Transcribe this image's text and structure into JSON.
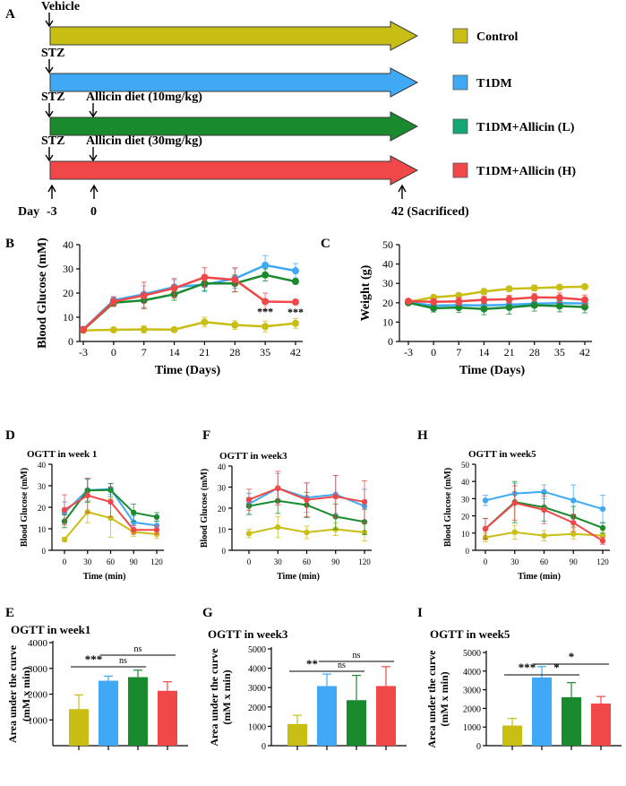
{
  "colors": {
    "control": "#c8be14",
    "t1dm": "#3fa9f5",
    "allicin_l": "#1a8a2e",
    "allicin_h": "#f04848",
    "legend_l": "#13a871"
  },
  "panel_letters": [
    "A",
    "B",
    "C",
    "D",
    "F",
    "H",
    "E",
    "G",
    "I"
  ],
  "schematic": {
    "arrows": [
      {
        "start_label": "Vehicle",
        "diet_label": ""
      },
      {
        "start_label": "STZ",
        "diet_label": ""
      },
      {
        "start_label": "STZ",
        "diet_label": "Allicin diet (10mg/kg)"
      },
      {
        "start_label": "STZ",
        "diet_label": "Allicin diet (30mg/kg)"
      }
    ],
    "legend": [
      "Control",
      "T1DM",
      "T1DM+Allicin (L)",
      "T1DM+Allicin (H)"
    ],
    "timeline": {
      "day_label": "Day",
      "start": "-3",
      "diet": "0",
      "end": "42 (Sacrificed)"
    }
  },
  "chart_data": [
    {
      "id": "B",
      "type": "line",
      "xlabel": "Time (Days)",
      "ylabel": "Blood Glucose (mM)",
      "x": [
        -3,
        0,
        7,
        14,
        21,
        28,
        35,
        42
      ],
      "xticks": [
        "-3",
        "0",
        "7",
        "14",
        "21",
        "28",
        "35",
        "42"
      ],
      "ylim": [
        0,
        40
      ],
      "yticks": [
        0,
        10,
        20,
        30,
        40
      ],
      "series": [
        {
          "name": "Control",
          "values": [
            4.6,
            4.8,
            5.0,
            4.9,
            8.0,
            6.8,
            6.2,
            7.5
          ],
          "err": [
            0.5,
            0.8,
            1.5,
            1.0,
            2.0,
            1.8,
            2.2,
            2.0
          ]
        },
        {
          "name": "T1DM",
          "values": [
            5.0,
            17.0,
            19.5,
            22.5,
            23.5,
            26.0,
            31.5,
            29.2
          ],
          "err": [
            0.5,
            1.5,
            3.5,
            3.0,
            3.0,
            4.0,
            4.0,
            3.0
          ]
        },
        {
          "name": "T1DM+Allicin (L)",
          "values": [
            4.8,
            16.0,
            17.0,
            19.5,
            24.0,
            24.0,
            27.5,
            24.8
          ],
          "err": [
            0.5,
            1.5,
            3.0,
            2.5,
            3.0,
            3.5,
            2.5,
            1.0
          ]
        },
        {
          "name": "T1DM+Allicin (H)",
          "values": [
            4.9,
            16.5,
            19.0,
            22.0,
            26.5,
            25.5,
            16.5,
            16.3
          ],
          "err": [
            0.5,
            2.0,
            5.5,
            4.0,
            4.0,
            5.0,
            3.5,
            1.0
          ]
        }
      ],
      "annotations": [
        "***",
        "***"
      ]
    },
    {
      "id": "C",
      "type": "line",
      "xlabel": "Time (Days)",
      "ylabel": "Weight (g)",
      "x": [
        -3,
        0,
        7,
        14,
        21,
        28,
        35,
        42
      ],
      "xticks": [
        "-3",
        "0",
        "7",
        "14",
        "21",
        "28",
        "35",
        "42"
      ],
      "ylim": [
        0,
        50
      ],
      "yticks": [
        0,
        10,
        20,
        30,
        40,
        50
      ],
      "series": [
        {
          "name": "Control",
          "values": [
            20.5,
            22.8,
            23.8,
            25.8,
            27.2,
            27.6,
            28.0,
            28.3
          ],
          "err": [
            0.8,
            1.0,
            1.2,
            1.5,
            1.2,
            1.5,
            1.2,
            1.0
          ]
        },
        {
          "name": "T1DM",
          "values": [
            20.2,
            18.5,
            18.8,
            18.6,
            19.0,
            19.5,
            19.8,
            19.6
          ],
          "err": [
            1.0,
            1.5,
            2.0,
            2.0,
            2.0,
            2.0,
            2.0,
            2.0
          ]
        },
        {
          "name": "T1DM+Allicin (L)",
          "values": [
            20.0,
            17.2,
            17.5,
            16.8,
            17.6,
            18.7,
            18.3,
            17.8
          ],
          "err": [
            1.0,
            2.0,
            2.5,
            3.0,
            3.5,
            3.0,
            3.0,
            3.0
          ]
        },
        {
          "name": "T1DM+Allicin (H)",
          "values": [
            20.8,
            20.5,
            20.7,
            21.5,
            21.8,
            22.8,
            22.6,
            21.5
          ],
          "err": [
            1.0,
            1.5,
            2.0,
            2.0,
            2.0,
            2.0,
            2.5,
            2.5
          ]
        }
      ]
    },
    {
      "id": "D",
      "type": "line",
      "title": "OGTT in week 1",
      "xlabel": "Time (min)",
      "ylabel": "Blood Glucose (mM)",
      "x": [
        0,
        30,
        60,
        90,
        120
      ],
      "xticks": [
        "0",
        "30",
        "60",
        "90",
        "120"
      ],
      "ylim": [
        0,
        40
      ],
      "yticks": [
        0,
        10,
        20,
        30,
        40
      ],
      "series": [
        {
          "name": "Control",
          "values": [
            5.0,
            17.8,
            15.0,
            8.5,
            7.5
          ],
          "err": [
            1.0,
            5.0,
            9.0,
            2.0,
            2.0
          ]
        },
        {
          "name": "T1DM",
          "values": [
            17.5,
            28.0,
            28.5,
            13.0,
            11.5
          ],
          "err": [
            5.0,
            5.0,
            2.5,
            3.0,
            2.0
          ]
        },
        {
          "name": "T1DM+Allicin (L)",
          "values": [
            13.5,
            27.8,
            28.0,
            17.5,
            15.5
          ],
          "err": [
            3.0,
            5.5,
            3.0,
            4.0,
            2.0
          ]
        },
        {
          "name": "T1DM+Allicin (H)",
          "values": [
            18.8,
            25.5,
            22.5,
            9.5,
            9.5
          ],
          "err": [
            7.0,
            8.0,
            7.0,
            2.0,
            2.0
          ]
        }
      ]
    },
    {
      "id": "F",
      "type": "line",
      "title": "OGTT in week3",
      "xlabel": "Time (min)",
      "ylabel": "Blood Glucose (mM)",
      "x": [
        0,
        30,
        60,
        90,
        120
      ],
      "xticks": [
        "0",
        "30",
        "60",
        "90",
        "120"
      ],
      "ylim": [
        0,
        40
      ],
      "yticks": [
        0,
        10,
        20,
        30,
        40
      ],
      "series": [
        {
          "name": "Control",
          "values": [
            8.0,
            11.0,
            8.5,
            10.0,
            8.5
          ],
          "err": [
            2.0,
            5.0,
            3.0,
            3.0,
            4.0
          ]
        },
        {
          "name": "T1DM",
          "values": [
            22.0,
            29.5,
            25.0,
            26.5,
            21.0
          ],
          "err": [
            5.0,
            7.0,
            7.0,
            9.0,
            8.0
          ]
        },
        {
          "name": "T1DM+Allicin (L)",
          "values": [
            21.0,
            23.5,
            21.5,
            16.0,
            13.5
          ],
          "err": [
            4.0,
            6.0,
            6.0,
            6.0,
            6.0
          ]
        },
        {
          "name": "T1DM+Allicin (H)",
          "values": [
            24.0,
            29.5,
            24.0,
            25.5,
            23.0
          ],
          "err": [
            5.0,
            8.0,
            8.0,
            10.0,
            10.0
          ]
        }
      ]
    },
    {
      "id": "H",
      "type": "line",
      "title": "OGTT in week5",
      "xlabel": "Time (min)",
      "ylabel": "Blood Glucose (mM)",
      "x": [
        0,
        30,
        60,
        90,
        120
      ],
      "xticks": [
        "0",
        "30",
        "60",
        "90",
        "120"
      ],
      "ylim": [
        0,
        50
      ],
      "yticks": [
        0,
        10,
        20,
        30,
        40,
        50
      ],
      "series": [
        {
          "name": "Control",
          "values": [
            7.5,
            10.5,
            8.5,
            9.5,
            8.5
          ],
          "err": [
            2.5,
            4.0,
            3.0,
            3.0,
            3.0
          ]
        },
        {
          "name": "T1DM",
          "values": [
            29.0,
            33.0,
            34.0,
            29.0,
            24.0
          ],
          "err": [
            3.0,
            6.0,
            4.0,
            9.0,
            8.0
          ]
        },
        {
          "name": "T1DM+Allicin (L)",
          "values": [
            12.5,
            28.0,
            25.0,
            19.5,
            13.0
          ],
          "err": [
            6.0,
            12.0,
            8.0,
            6.0,
            3.0
          ]
        },
        {
          "name": "T1DM+Allicin (H)",
          "values": [
            12.5,
            27.5,
            23.5,
            16.0,
            5.5
          ],
          "err": [
            6.0,
            10.0,
            8.0,
            5.0,
            2.0
          ]
        }
      ]
    },
    {
      "id": "E",
      "type": "bar",
      "title": "OGTT in week1",
      "ylabel": "Area under the curve\n(mM x min)",
      "categories": [
        "Control",
        "T1DM",
        "T1DM+Allicin (L)",
        "T1DM+Allicin (H)"
      ],
      "values": [
        1420,
        2520,
        2660,
        2130
      ],
      "err": [
        550,
        180,
        270,
        350
      ],
      "ylim": [
        0,
        4000
      ],
      "yticks": [
        1000,
        2000,
        3000,
        4000
      ],
      "significance": [
        {
          "from": 0,
          "to": 1,
          "label": "***"
        },
        {
          "from": 1,
          "to": 2,
          "label": "ns"
        },
        {
          "from": 1,
          "to": 3,
          "label": "ns"
        }
      ]
    },
    {
      "id": "G",
      "type": "bar",
      "title": "OGTT in week3",
      "ylabel": "Area under the curve\n(mM x min)",
      "categories": [
        "Control",
        "T1DM",
        "T1DM+Allicin (L)",
        "T1DM+Allicin (H)"
      ],
      "values": [
        1120,
        3080,
        2350,
        3080
      ],
      "err": [
        450,
        620,
        1280,
        1000
      ],
      "ylim": [
        0,
        5000
      ],
      "yticks": [
        0,
        1000,
        2000,
        3000,
        4000,
        5000
      ],
      "significance": [
        {
          "from": 0,
          "to": 1,
          "label": "**"
        },
        {
          "from": 1,
          "to": 2,
          "label": "ns"
        },
        {
          "from": 1,
          "to": 3,
          "label": "ns"
        }
      ]
    },
    {
      "id": "I",
      "type": "bar",
      "title": "OGTT in week5",
      "ylabel": "Area under the curve\n(mM x min)",
      "categories": [
        "Control",
        "T1DM",
        "T1DM+Allicin (L)",
        "T1DM+Allicin (H)"
      ],
      "values": [
        1080,
        3660,
        2600,
        2260
      ],
      "err": [
        380,
        580,
        780,
        380
      ],
      "ylim": [
        0,
        5000
      ],
      "yticks": [
        0,
        1000,
        2000,
        3000,
        4000,
        5000
      ],
      "significance": [
        {
          "from": 0,
          "to": 1,
          "label": "***"
        },
        {
          "from": 1,
          "to": 2,
          "label": "*"
        },
        {
          "from": 1,
          "to": 3,
          "label": "*"
        }
      ]
    }
  ]
}
